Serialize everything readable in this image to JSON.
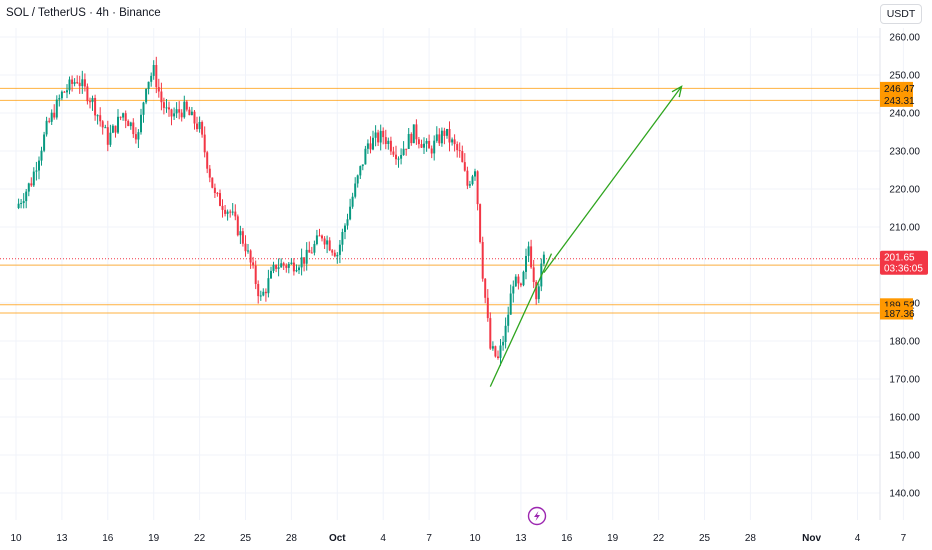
{
  "header": {
    "title": "SOL / TetherUS · 4h · Binance",
    "currency": "USDT"
  },
  "colors": {
    "up": "#089981",
    "down": "#f23645",
    "level": "#ff9800",
    "trend": "#2fa51f",
    "price_tag": "#f23645",
    "icon": "#9c27b0"
  },
  "icons": {
    "bottom_center": "lightning-bolt-icon"
  },
  "chart_data": {
    "type": "candlestick",
    "title": "SOL / TetherUS · 4h · Binance",
    "ylim": [
      135,
      265
    ],
    "y_ticks": [
      "260.00",
      "250.00",
      "240.00",
      "230.00",
      "220.00",
      "210.00",
      "200.00",
      "190.00",
      "180.00",
      "170.00",
      "160.00",
      "150.00",
      "140.00"
    ],
    "y_tick_values": [
      260,
      250,
      240,
      230,
      220,
      210,
      200,
      190,
      180,
      170,
      160,
      150,
      140
    ],
    "x_ticks": [
      "10",
      "13",
      "16",
      "19",
      "22",
      "25",
      "28",
      "Oct",
      "4",
      "7",
      "10",
      "13",
      "16",
      "19",
      "22",
      "25",
      "28",
      "Nov",
      "4",
      "7"
    ],
    "x_tick_dates": [
      "2024-09-10",
      "2024-09-13",
      "2024-09-16",
      "2024-09-19",
      "2024-09-22",
      "2024-09-25",
      "2024-09-28",
      "2024-10-01",
      "2024-10-04",
      "2024-10-07",
      "2024-10-10",
      "2024-10-13",
      "2024-10-16",
      "2024-10-19",
      "2024-10-22",
      "2024-10-25",
      "2024-10-28",
      "2024-11-01",
      "2024-11-04",
      "2024-11-07"
    ],
    "price_path": [
      [
        "2024-09-10",
        215
      ],
      [
        "2024-09-11",
        222
      ],
      [
        "2024-09-12",
        236
      ],
      [
        "2024-09-13",
        245
      ],
      [
        "2024-09-14",
        249
      ],
      [
        "2024-09-15",
        243
      ],
      [
        "2024-09-16",
        233
      ],
      [
        "2024-09-17",
        240
      ],
      [
        "2024-09-18",
        234
      ],
      [
        "2024-09-18 12:00",
        248
      ],
      [
        "2024-09-19",
        251
      ],
      [
        "2024-09-19 12:00",
        243
      ],
      [
        "2024-09-20",
        239
      ],
      [
        "2024-09-21",
        241
      ],
      [
        "2024-09-22",
        236
      ],
      [
        "2024-09-23",
        218
      ],
      [
        "2024-09-24",
        214
      ],
      [
        "2024-09-25",
        205
      ],
      [
        "2024-09-26",
        191
      ],
      [
        "2024-09-27",
        200
      ],
      [
        "2024-09-28",
        200
      ],
      [
        "2024-09-29",
        202
      ],
      [
        "2024-09-30",
        208
      ],
      [
        "2024-10-01",
        203
      ],
      [
        "2024-10-02",
        218
      ],
      [
        "2024-10-03",
        232
      ],
      [
        "2024-10-04",
        234
      ],
      [
        "2024-10-05",
        229
      ],
      [
        "2024-10-06",
        235
      ],
      [
        "2024-10-07",
        230
      ],
      [
        "2024-10-08",
        235
      ],
      [
        "2024-10-09",
        229
      ],
      [
        "2024-10-09 12:00",
        221
      ],
      [
        "2024-10-10",
        226
      ],
      [
        "2024-10-10 12:00",
        198
      ],
      [
        "2024-10-11",
        178
      ],
      [
        "2024-10-11 12:00",
        175
      ],
      [
        "2024-10-12",
        183
      ],
      [
        "2024-10-12 12:00",
        196
      ],
      [
        "2024-10-13",
        193
      ],
      [
        "2024-10-13 12:00",
        205
      ],
      [
        "2024-10-14",
        193
      ],
      [
        "2024-10-14 12:00",
        201.65
      ]
    ],
    "horizontal_levels": [
      246.47,
      243.31,
      199.98,
      189.52,
      187.36
    ],
    "level_labels": [
      "246.47",
      "243.31",
      "199.98",
      "189.52",
      "187.36"
    ],
    "current_price": 201.65,
    "current_price_label": "201.65",
    "countdown": "03:36:05",
    "trend_line": {
      "from": [
        "2024-10-11",
        168
      ],
      "to": [
        "2024-10-15",
        203
      ]
    },
    "arrow": {
      "from": [
        "2024-10-14 12:00",
        198
      ],
      "to": [
        "2024-10-23 12:00",
        247
      ]
    },
    "grid": true,
    "legend": "none"
  }
}
